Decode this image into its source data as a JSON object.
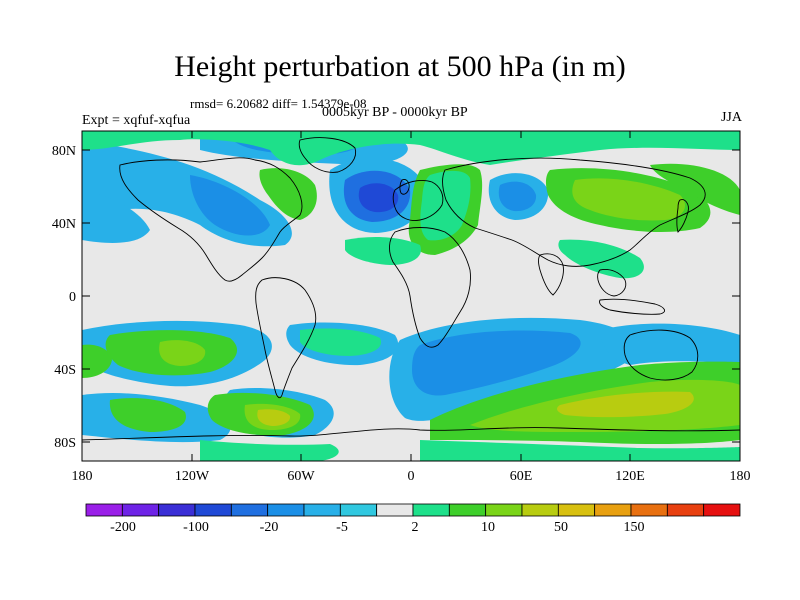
{
  "header": {
    "title": "Height perturbation at 500 hPa (in m)",
    "stats": "rmsd= 6.20682 diff= 1.54379e-08",
    "period": "0005kyr BP - 0000kyr BP",
    "experiment": "Expt = xqfuf-xqfua",
    "season": "JJA"
  },
  "axes": {
    "lat_labels": [
      "80N",
      "40N",
      "0",
      "40S",
      "80S"
    ],
    "lon_labels": [
      "180",
      "120W",
      "60W",
      "0",
      "60E",
      "120E",
      "180"
    ]
  },
  "colorbar": {
    "labels": [
      "-200",
      "-100",
      "-20",
      "-5",
      "2",
      "10",
      "50",
      "150"
    ],
    "colors": [
      "#9a1fe8",
      "#6e23e6",
      "#3b2fd6",
      "#1f49d6",
      "#1f6fe0",
      "#1b8fe6",
      "#28b0e8",
      "#30c8e0",
      "#e8e8e8",
      "#1ee08a",
      "#3ecf2a",
      "#7ad418",
      "#b8cc10",
      "#d8c010",
      "#e8a010",
      "#e87010",
      "#e84010",
      "#e61010"
    ]
  },
  "colors": {
    "background": "#e8e8e8",
    "coast": "#000000"
  }
}
